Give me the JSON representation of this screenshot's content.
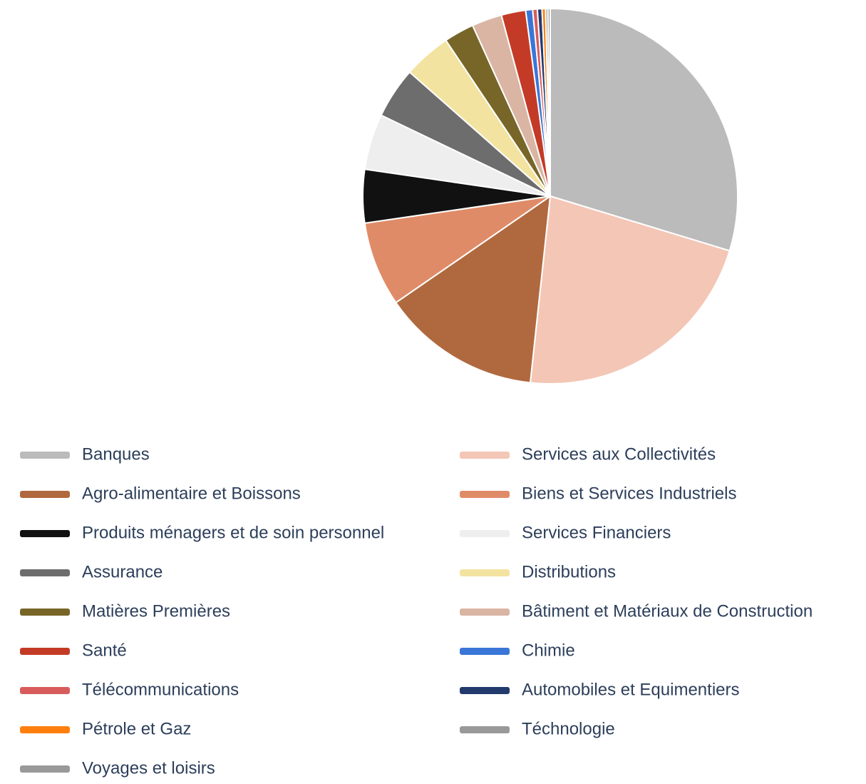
{
  "chart_data": {
    "type": "pie",
    "categories": [
      "Banques",
      "Services aux Collectivités",
      "Agro-alimentaire et Boissons",
      "Biens et Services Industriels",
      "Produits ménagers et de soin personnel",
      "Services Financiers",
      "Assurance",
      "Distributions",
      "Matières Premières",
      "Bâtiment et Matériaux de Construction",
      "Santé",
      "Chimie",
      "Télécommunications",
      "Automobiles et Equimentiers",
      "Pétrole et Gaz",
      "Téchnologie",
      "Voyages et loisirs"
    ],
    "values": [
      29.7,
      22,
      13.7,
      7.3,
      4.6,
      4.8,
      4.4,
      4.1,
      2.6,
      2.6,
      2.1,
      0.6,
      0.4,
      0.4,
      0.3,
      0.2,
      0.2
    ],
    "colors": [
      "#bbbbbb",
      "#f4c6b6",
      "#b0693e",
      "#e08b68",
      "#111111",
      "#eeeeee",
      "#6d6d6d",
      "#f3e3a0",
      "#776628",
      "#dab5a4",
      "#c33b26",
      "#3a76d8",
      "#d85c5c",
      "#233a6d",
      "#ff7f0e",
      "#999999",
      "#999999"
    ],
    "legend": "bottom"
  }
}
